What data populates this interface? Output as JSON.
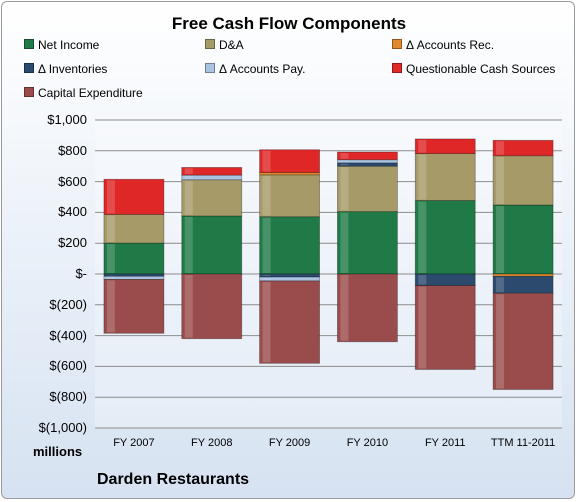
{
  "chart_data": {
    "type": "bar",
    "stacked": true,
    "title": "Free Cash Flow Components",
    "categories": [
      "FY 2007",
      "FY 2008",
      "FY 2009",
      "FY 2010",
      "FY 2011",
      "TTM 11-2011"
    ],
    "ylim": [
      -1000,
      1000
    ],
    "ytick_values": [
      1000,
      800,
      600,
      400,
      200,
      0,
      -200,
      -400,
      -600,
      -800,
      -1000
    ],
    "ytick_labels": [
      "$1,000",
      "$800",
      "$600",
      "$400",
      "$200",
      "$-",
      "$(200)",
      "$(400)",
      "$(600)",
      "$(800)",
      "$(1,000)"
    ],
    "units_label": "millions",
    "grid": true,
    "legend_position": "top",
    "series": [
      {
        "name": "Net Income",
        "color": "#207a47",
        "values": [
          201,
          377,
          372,
          405,
          477,
          448
        ]
      },
      {
        "name": "D&A",
        "color": "#a59a68",
        "values": [
          186,
          235,
          272,
          295,
          305,
          320
        ]
      },
      {
        "name": "Δ Accounts Rec.",
        "color": "#e0892e",
        "values": [
          0,
          0,
          15,
          0,
          0,
          -15
        ]
      },
      {
        "name": "Δ Inventories",
        "color": "#2c4a6e",
        "values": [
          -15,
          0,
          -20,
          22,
          -75,
          -110
        ]
      },
      {
        "name": "Δ Accounts Pay.",
        "color": "#a9c3e1",
        "values": [
          -20,
          30,
          -25,
          20,
          0,
          0
        ]
      },
      {
        "name": "Questionable Cash Sources",
        "color": "#e02727",
        "values": [
          228,
          50,
          148,
          50,
          95,
          100
        ]
      },
      {
        "name": "Capital Expenditure",
        "color": "#9a4c4c",
        "values": [
          -350,
          -420,
          -535,
          -440,
          -545,
          -625
        ]
      }
    ]
  },
  "footer": {
    "company": "Darden Restaurants"
  }
}
